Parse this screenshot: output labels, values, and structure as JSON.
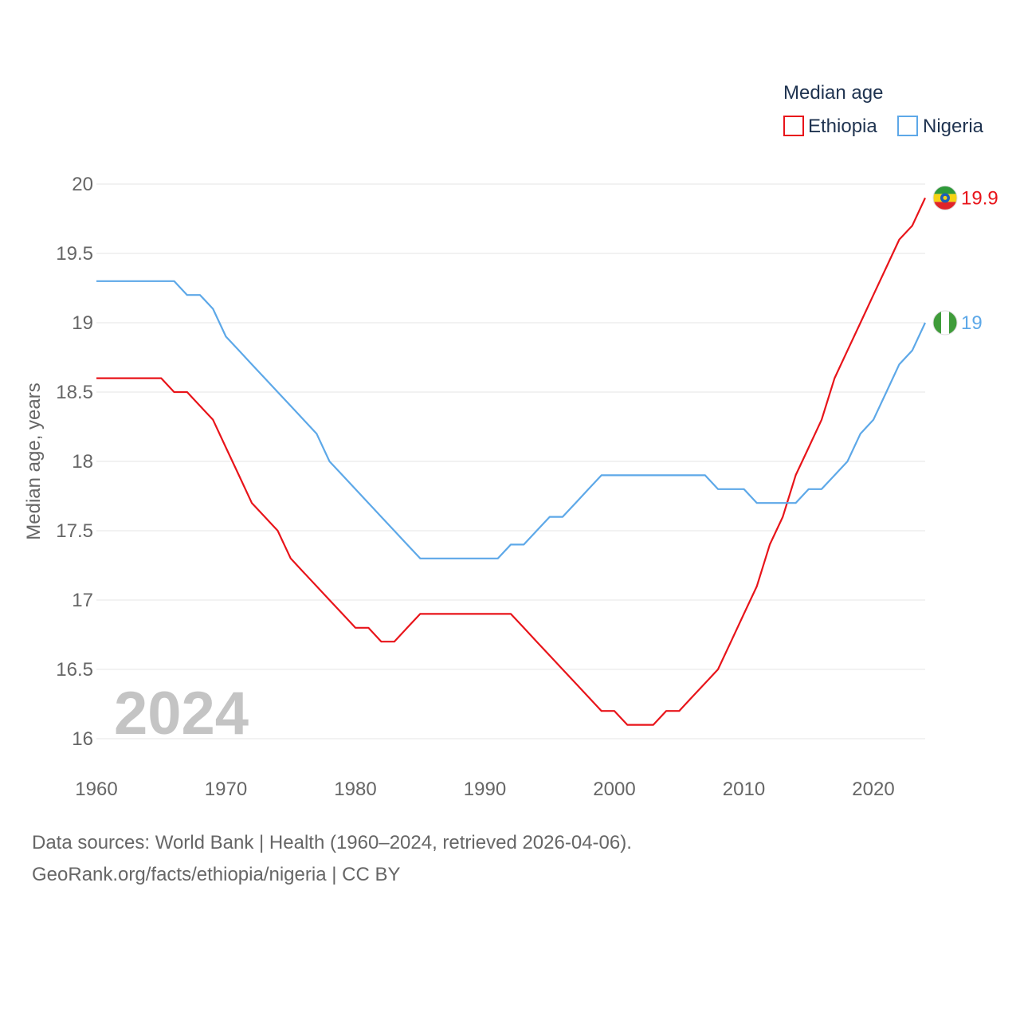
{
  "chart_data": {
    "type": "line",
    "legend_title": "Median age",
    "ylabel": "Median age, years",
    "xlabel": "",
    "year_overlay": "2024",
    "xlim": [
      1960,
      2024
    ],
    "ylim": [
      16,
      20
    ],
    "x_ticks": [
      1960,
      1970,
      1980,
      1990,
      2000,
      2010,
      2020
    ],
    "y_ticks": [
      {
        "value": 16,
        "label": "16"
      },
      {
        "value": 16.5,
        "label": "16.5"
      },
      {
        "value": 17,
        "label": "17"
      },
      {
        "value": 17.5,
        "label": "17.5"
      },
      {
        "value": 18,
        "label": "18"
      },
      {
        "value": 18.5,
        "label": "18.5"
      },
      {
        "value": 19,
        "label": "19"
      },
      {
        "value": 19.5,
        "label": "19.5"
      },
      {
        "value": 20,
        "label": "20"
      }
    ],
    "x": [
      1960,
      1961,
      1962,
      1963,
      1964,
      1965,
      1966,
      1967,
      1968,
      1969,
      1970,
      1971,
      1972,
      1973,
      1974,
      1975,
      1976,
      1977,
      1978,
      1979,
      1980,
      1981,
      1982,
      1983,
      1984,
      1985,
      1986,
      1987,
      1988,
      1989,
      1990,
      1991,
      1992,
      1993,
      1994,
      1995,
      1996,
      1997,
      1998,
      1999,
      2000,
      2001,
      2002,
      2003,
      2004,
      2005,
      2006,
      2007,
      2008,
      2009,
      2010,
      2011,
      2012,
      2013,
      2014,
      2015,
      2016,
      2017,
      2018,
      2019,
      2020,
      2021,
      2022,
      2023,
      2024
    ],
    "series": [
      {
        "name": "Ethiopia",
        "color": "#e8141a",
        "end_label": "19.9",
        "flag": "ethiopia-flag",
        "values": [
          18.6,
          18.6,
          18.6,
          18.6,
          18.6,
          18.6,
          18.5,
          18.5,
          18.4,
          18.3,
          18.1,
          17.9,
          17.7,
          17.6,
          17.5,
          17.3,
          17.2,
          17.1,
          17.0,
          16.9,
          16.8,
          16.8,
          16.7,
          16.7,
          16.8,
          16.9,
          16.9,
          16.9,
          16.9,
          16.9,
          16.9,
          16.9,
          16.9,
          16.8,
          16.7,
          16.6,
          16.5,
          16.4,
          16.3,
          16.2,
          16.2,
          16.1,
          16.1,
          16.1,
          16.2,
          16.2,
          16.3,
          16.4,
          16.5,
          16.7,
          16.9,
          17.1,
          17.4,
          17.6,
          17.9,
          18.1,
          18.3,
          18.6,
          18.8,
          19.0,
          19.2,
          19.4,
          19.6,
          19.7,
          19.9
        ]
      },
      {
        "name": "Nigeria",
        "color": "#5da8e8",
        "end_label": "19",
        "flag": "nigeria-flag",
        "values": [
          19.3,
          19.3,
          19.3,
          19.3,
          19.3,
          19.3,
          19.3,
          19.2,
          19.2,
          19.1,
          18.9,
          18.8,
          18.7,
          18.6,
          18.5,
          18.4,
          18.3,
          18.2,
          18.0,
          17.9,
          17.8,
          17.7,
          17.6,
          17.5,
          17.4,
          17.3,
          17.3,
          17.3,
          17.3,
          17.3,
          17.3,
          17.3,
          17.4,
          17.4,
          17.5,
          17.6,
          17.6,
          17.7,
          17.8,
          17.9,
          17.9,
          17.9,
          17.9,
          17.9,
          17.9,
          17.9,
          17.9,
          17.9,
          17.8,
          17.8,
          17.8,
          17.7,
          17.7,
          17.7,
          17.7,
          17.8,
          17.8,
          17.9,
          18.0,
          18.2,
          18.3,
          18.5,
          18.7,
          18.8,
          19.0
        ]
      }
    ]
  },
  "footer": {
    "line1": "Data sources: World Bank | Health (1960–2024, retrieved 2026-04-06).",
    "line2": "GeoRank.org/facts/ethiopia/nigeria | CC BY"
  }
}
